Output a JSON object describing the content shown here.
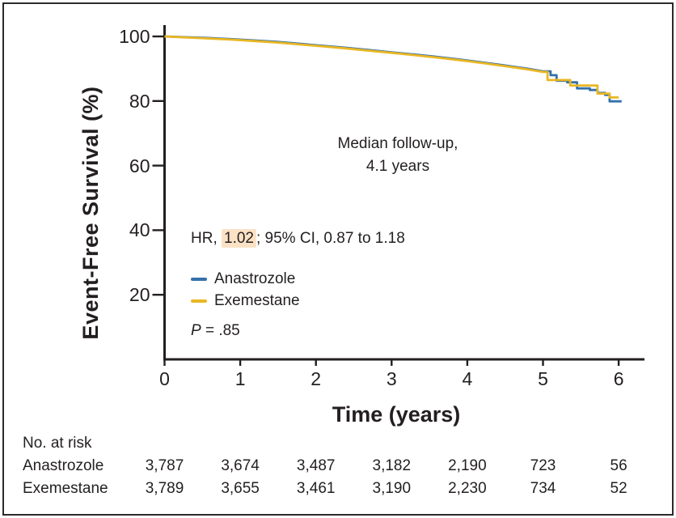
{
  "figure": {
    "ylabel": "Event-Free Survival (%)",
    "xlabel": "Time (years)"
  },
  "annotations": {
    "median_line1": "Median follow-up,",
    "median_line2": "4.1 years",
    "hr_prefix": "HR, ",
    "hr_value": "1.02",
    "hr_suffix": "; 95% CI, 0.87 to 1.18",
    "p_italic": "P",
    "p_rest": " = .85"
  },
  "legend": [
    {
      "label": "Anastrozole",
      "color": "#3571ab"
    },
    {
      "label": "Exemestane",
      "color": "#e9b723"
    }
  ],
  "chart_data": {
    "type": "line",
    "title": "",
    "xlabel": "Time (years)",
    "ylabel": "Event-Free Survival (%)",
    "xlim": [
      0,
      6.35
    ],
    "ylim": [
      0,
      100
    ],
    "xticks": [
      0,
      1,
      2,
      3,
      4,
      5,
      6
    ],
    "yticks": [
      20,
      40,
      60,
      80,
      100
    ],
    "grid": false,
    "legend_position": "inside-left",
    "series": [
      {
        "name": "Anastrozole",
        "color": "#3571ab",
        "points": [
          [
            0,
            100
          ],
          [
            0.3,
            99.75
          ],
          [
            0.6,
            99.5
          ],
          [
            0.9,
            99.15
          ],
          [
            1.2,
            98.75
          ],
          [
            1.5,
            98.3
          ],
          [
            1.8,
            97.7
          ],
          [
            2.1,
            97.1
          ],
          [
            2.4,
            96.5
          ],
          [
            2.7,
            95.8
          ],
          [
            3.0,
            95.1
          ],
          [
            3.3,
            94.4
          ],
          [
            3.6,
            93.65
          ],
          [
            3.9,
            92.85
          ],
          [
            4.2,
            91.95
          ],
          [
            4.5,
            91.0
          ],
          [
            4.8,
            90.0
          ],
          [
            5.0,
            89.2
          ],
          [
            5.1,
            89.2
          ],
          [
            5.1,
            88.0
          ],
          [
            5.18,
            88.0
          ],
          [
            5.18,
            86.3
          ],
          [
            5.32,
            86.3
          ],
          [
            5.32,
            85.8
          ],
          [
            5.45,
            85.8
          ],
          [
            5.45,
            83.9
          ],
          [
            5.62,
            83.9
          ],
          [
            5.62,
            83.4
          ],
          [
            5.72,
            83.4
          ],
          [
            5.72,
            82.5
          ],
          [
            5.82,
            82.5
          ],
          [
            5.82,
            81.9
          ],
          [
            5.88,
            81.9
          ],
          [
            5.88,
            79.9
          ],
          [
            6.04,
            79.9
          ]
        ]
      },
      {
        "name": "Exemestane",
        "color": "#e9b723",
        "points": [
          [
            0,
            100
          ],
          [
            0.3,
            99.65
          ],
          [
            0.6,
            99.35
          ],
          [
            0.9,
            99.0
          ],
          [
            1.2,
            98.55
          ],
          [
            1.5,
            98.1
          ],
          [
            1.8,
            97.5
          ],
          [
            2.1,
            96.9
          ],
          [
            2.4,
            96.3
          ],
          [
            2.7,
            95.6
          ],
          [
            3.0,
            94.9
          ],
          [
            3.3,
            94.2
          ],
          [
            3.6,
            93.45
          ],
          [
            3.9,
            92.65
          ],
          [
            4.2,
            91.75
          ],
          [
            4.5,
            90.8
          ],
          [
            4.8,
            89.8
          ],
          [
            5.0,
            89.0
          ],
          [
            5.06,
            89.0
          ],
          [
            5.06,
            86.5
          ],
          [
            5.36,
            86.5
          ],
          [
            5.36,
            84.8
          ],
          [
            5.72,
            84.8
          ],
          [
            5.72,
            82.3
          ],
          [
            5.88,
            82.3
          ],
          [
            5.88,
            81.1
          ],
          [
            6.0,
            81.1
          ]
        ]
      }
    ],
    "annotations": [
      "Median follow-up, 4.1 years",
      "HR, 1.02; 95% CI, 0.87 to 1.18",
      "P = .85"
    ]
  },
  "risk_table": {
    "heading": "No. at risk",
    "time_points": [
      0,
      1,
      2,
      3,
      4,
      5,
      6
    ],
    "rows": [
      {
        "label": "Anastrozole",
        "values": [
          "3,787",
          "3,674",
          "3,487",
          "3,182",
          "2,190",
          "723",
          "56"
        ]
      },
      {
        "label": "Exemestane",
        "values": [
          "3,789",
          "3,655",
          "3,461",
          "3,190",
          "2,230",
          "734",
          "52"
        ]
      }
    ]
  },
  "colors": {
    "anastrozole_line": "#3571ab",
    "exemestane_line": "#e9b723",
    "hr_highlight": "#fbe2c5",
    "axis": "#231f20",
    "text": "#231f20",
    "border": "#2b2b2b",
    "background": "#ffffff"
  }
}
